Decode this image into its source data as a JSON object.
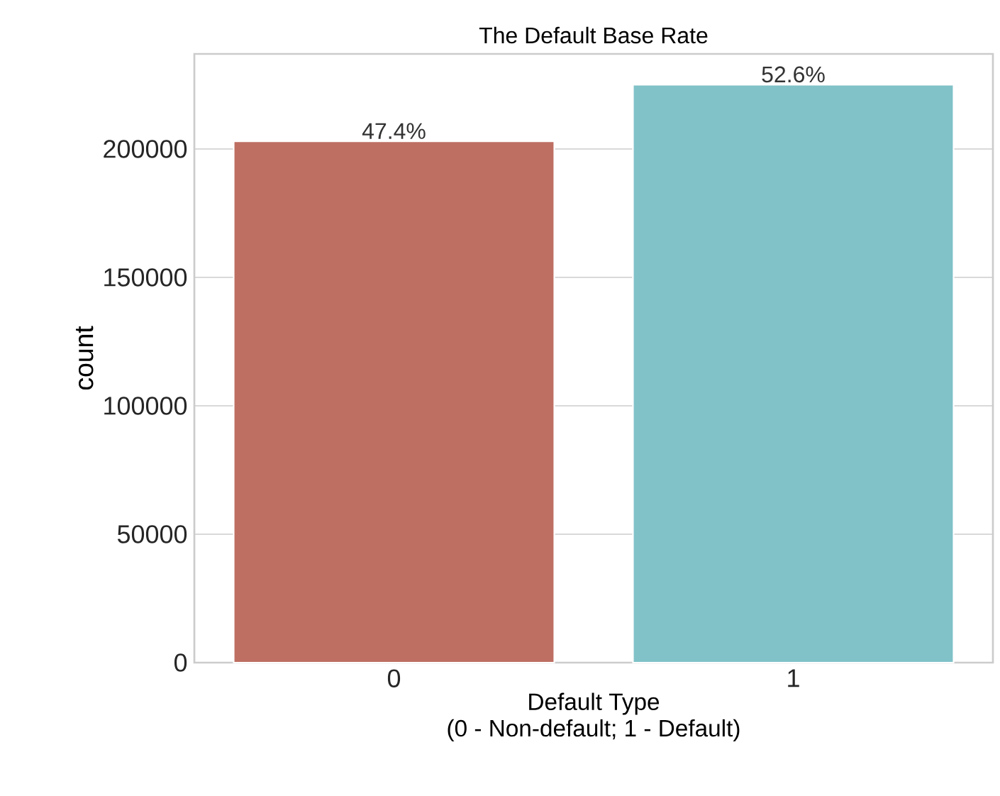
{
  "chart_data": {
    "type": "bar",
    "title": "The Default Base Rate",
    "xlabel": "Default Type\n(0 - Non-default; 1 - Default)",
    "ylabel": "count",
    "categories": [
      "0",
      "1"
    ],
    "values": [
      203000,
      225000
    ],
    "annotations": [
      {
        "text": "47.4%",
        "x": "0",
        "y": 203000
      },
      {
        "text": "52.6%",
        "x": "1",
        "y": 225000
      }
    ],
    "colors": [
      "#be6f62",
      "#80c2c8"
    ],
    "ylim": [
      0,
      237000
    ],
    "yticks": [
      0,
      50000,
      100000,
      150000,
      200000
    ],
    "grid": "y"
  }
}
